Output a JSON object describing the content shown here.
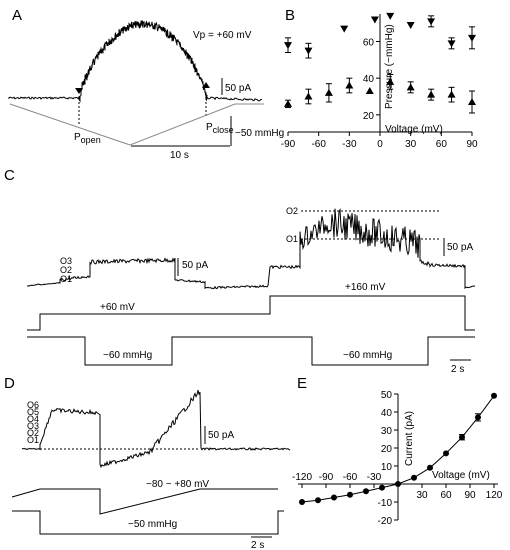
{
  "figure": {
    "panels": {
      "A": {
        "letter": "A",
        "vp_label": "Vp = +60 mV",
        "p_open": {
          "main": "P",
          "sub": "open"
        },
        "p_close": {
          "main": "P",
          "sub": "close"
        },
        "scale_current": "50 pA",
        "scale_time": "10 s",
        "scale_pressure": "−50 mmHg"
      },
      "B": {
        "letter": "B"
      },
      "C": {
        "letter": "C",
        "levels_left": [
          "O3",
          "O2",
          "O1"
        ],
        "levels_right": [
          "O2",
          "O1"
        ],
        "scale_current_left": "50 pA",
        "scale_current_right": "50 pA",
        "v1": "+60 mV",
        "v2": "+160 mV",
        "p1": "−60 mmHg",
        "p2": "−60 mmHg",
        "scale_time": "2 s"
      },
      "D": {
        "letter": "D",
        "levels": [
          "O6",
          "O5",
          "O4",
          "O3",
          "O2",
          "O1"
        ],
        "scale_current": "50 pA",
        "ramp": "−80 ~ +80 mV",
        "pressure": "−50 mmHg",
        "scale_time": "2 s"
      },
      "E": {
        "letter": "E"
      }
    }
  },
  "chart_data": [
    {
      "panel": "B",
      "type": "scatter",
      "xlabel": "Voltage (mV)",
      "ylabel": "Pressure (−mmHg)",
      "xlim": [
        -90,
        90
      ],
      "ylim": [
        15,
        75
      ],
      "xticks": [
        -90,
        -60,
        -30,
        0,
        30,
        60,
        90
      ],
      "yticks": [
        20,
        40,
        60
      ],
      "series": [
        {
          "marker": "triangle-down",
          "x": [
            -90,
            -70,
            -35,
            -5,
            10,
            30,
            50,
            70,
            90
          ],
          "y": [
            58,
            55,
            67,
            72,
            74,
            69,
            71,
            59,
            62
          ],
          "err": [
            4,
            4,
            0,
            0,
            0,
            0,
            3,
            3,
            6
          ]
        },
        {
          "marker": "triangle-up",
          "x": [
            -90,
            -70,
            -50,
            -30,
            -10,
            10,
            30,
            50,
            70,
            90
          ],
          "y": [
            26,
            30,
            32,
            36,
            33,
            38,
            35,
            31,
            31,
            27
          ],
          "err": [
            2,
            4,
            5,
            4,
            0,
            4,
            3,
            3,
            4,
            6
          ]
        }
      ]
    },
    {
      "panel": "E",
      "type": "line",
      "xlabel": "Voltage (mV)",
      "ylabel": "Current (pA)",
      "xlim": [
        -125,
        125
      ],
      "ylim": [
        -20,
        50
      ],
      "xticks": [
        -120,
        -90,
        -60,
        -30,
        30,
        60,
        90,
        120
      ],
      "yticks": [
        -20,
        -10,
        10,
        20,
        30,
        40,
        50
      ],
      "series": [
        {
          "x": [
            -120,
            -100,
            -80,
            -60,
            -40,
            -20,
            0,
            20,
            40,
            60,
            80,
            100,
            120
          ],
          "y": [
            -10,
            -9,
            -7.5,
            -6,
            -4,
            -2,
            0,
            3.5,
            9,
            17,
            26,
            37,
            49
          ],
          "err": [
            0,
            0,
            0,
            0,
            0,
            0,
            0,
            0,
            0,
            0,
            1.5,
            2,
            0
          ]
        }
      ]
    }
  ]
}
